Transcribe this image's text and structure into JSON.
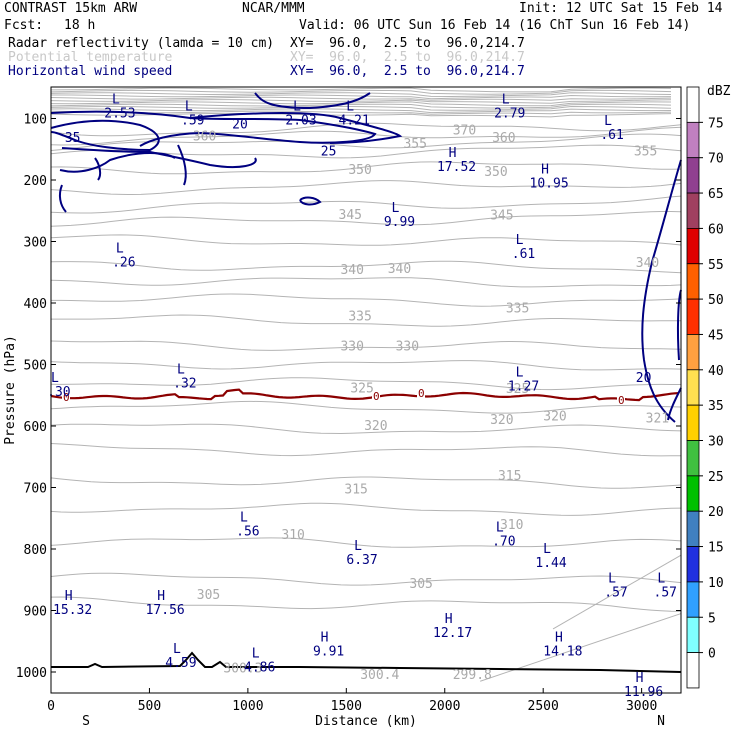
{
  "header": {
    "model": "CONTRAST 15km ARW",
    "org": "NCAR/MMM",
    "init": "Init: 12 UTC Sat 15 Feb 14",
    "fcst_label": "Fcst:",
    "fcst_value": "18 h",
    "valid": "Valid: 06 UTC Sun 16 Feb 14 (16 ChT Sun 16 Feb 14)"
  },
  "fields": [
    {
      "name": "Radar reflectivity (lamda = 10 cm)",
      "xy": "XY=  96.0,  2.5 to  96.0,214.7",
      "color": "#000000"
    },
    {
      "name": "Potential temperature",
      "xy": "XY=  96.0,  2.5 to  96.0,214.7",
      "color": "#c8c8c8"
    },
    {
      "name": "Horizontal wind speed",
      "xy": "XY=  96.0,  2.5 to  96.0,214.7",
      "color": "#000080"
    }
  ],
  "chart_data": {
    "type": "cross-section contour",
    "xlabel": "Distance (km)",
    "ylabel": "Pressure (hPa)",
    "xlim": [
      0,
      3200
    ],
    "ylim": [
      1040,
      55
    ],
    "x_ticks": [
      0,
      500,
      1000,
      1500,
      2000,
      2500,
      3000
    ],
    "x_tick_labels": [
      "0",
      "500",
      "1000",
      "1500",
      "2000",
      "2500",
      "3000"
    ],
    "y_ticks": [
      100,
      200,
      300,
      400,
      500,
      600,
      700,
      800,
      900,
      1000
    ],
    "y_tick_labels": [
      "100",
      "200",
      "300",
      "400",
      "500",
      "600",
      "700",
      "800",
      "900",
      "1000"
    ],
    "x_endpoints": {
      "left": "S",
      "right": "N"
    },
    "colorbar": {
      "unit": "dBZ",
      "levels": [
        "75",
        "70",
        "65",
        "60",
        "55",
        "50",
        "45",
        "40",
        "35",
        "30",
        "25",
        "20",
        "15",
        "10",
        "5",
        "0"
      ],
      "colors": [
        "#ffffff",
        "#c080c0",
        "#904090",
        "#a04060",
        "#e00000",
        "#ff6000",
        "#ff3000",
        "#ffa040",
        "#ffe050",
        "#ffd000",
        "#40c040",
        "#00c000",
        "#4080c0",
        "#2030e0",
        "#30a0ff",
        "#80ffff",
        "#ffffff"
      ]
    },
    "theta_labels": [
      {
        "text": "370",
        "x": 2100,
        "p": 118
      },
      {
        "text": "360",
        "x": 2300,
        "p": 130
      },
      {
        "text": "355",
        "x": 1850,
        "p": 140
      },
      {
        "text": "355",
        "x": 3020,
        "p": 152
      },
      {
        "text": "360",
        "x": 780,
        "p": 128
      },
      {
        "text": "350",
        "x": 1570,
        "p": 182
      },
      {
        "text": "350",
        "x": 2260,
        "p": 185
      },
      {
        "text": "345",
        "x": 1520,
        "p": 255
      },
      {
        "text": "345",
        "x": 2290,
        "p": 256
      },
      {
        "text": "340",
        "x": 1530,
        "p": 345
      },
      {
        "text": "340",
        "x": 1770,
        "p": 343
      },
      {
        "text": "340",
        "x": 3030,
        "p": 333
      },
      {
        "text": "335",
        "x": 1570,
        "p": 420
      },
      {
        "text": "335",
        "x": 2370,
        "p": 407
      },
      {
        "text": "330",
        "x": 1530,
        "p": 469
      },
      {
        "text": "330",
        "x": 1810,
        "p": 469
      },
      {
        "text": "325",
        "x": 1580,
        "p": 537
      },
      {
        "text": "325",
        "x": 2370,
        "p": 538
      },
      {
        "text": "320",
        "x": 1650,
        "p": 598
      },
      {
        "text": "320",
        "x": 2290,
        "p": 589
      },
      {
        "text": "320",
        "x": 2560,
        "p": 583
      },
      {
        "text": "321",
        "x": 3080,
        "p": 586
      },
      {
        "text": "315",
        "x": 1550,
        "p": 702
      },
      {
        "text": "315",
        "x": 2330,
        "p": 680
      },
      {
        "text": "310",
        "x": 1230,
        "p": 776
      },
      {
        "text": "310",
        "x": 2340,
        "p": 759
      },
      {
        "text": "305",
        "x": 800,
        "p": 873
      },
      {
        "text": "305",
        "x": 1880,
        "p": 855
      },
      {
        "text": "300.3",
        "x": 975,
        "p": 993
      },
      {
        "text": "300.4",
        "x": 1670,
        "p": 1003
      },
      {
        "text": "299.8",
        "x": 2140,
        "p": 1003
      }
    ],
    "wind_labels": [
      {
        "text": "35",
        "x": 110,
        "p": 130
      },
      {
        "text": "20",
        "x": 960,
        "p": 108
      },
      {
        "text": "25",
        "x": 1410,
        "p": 152
      },
      {
        "text": "20",
        "x": 3010,
        "p": 520
      }
    ],
    "extrema": [
      {
        "type": "L",
        "value": "2.53",
        "x": 350,
        "p": 85
      },
      {
        "type": "L",
        "value": ".59",
        "x": 720,
        "p": 97
      },
      {
        "type": "L",
        "value": "2.03",
        "x": 1270,
        "p": 97
      },
      {
        "type": "L",
        "value": "4.21",
        "x": 1540,
        "p": 97
      },
      {
        "type": "L",
        "value": "2.79",
        "x": 2330,
        "p": 85
      },
      {
        "type": "L",
        "value": ".61",
        "x": 2850,
        "p": 120
      },
      {
        "type": "H",
        "value": "17.52",
        "x": 2060,
        "p": 172
      },
      {
        "type": "H",
        "value": "10.95",
        "x": 2530,
        "p": 199
      },
      {
        "type": "L",
        "value": "9.99",
        "x": 1770,
        "p": 262
      },
      {
        "type": "L",
        "value": ".61",
        "x": 2400,
        "p": 314
      },
      {
        "type": "L",
        "value": ".26",
        "x": 370,
        "p": 328
      },
      {
        "type": "L",
        "value": ".32",
        "x": 680,
        "p": 524
      },
      {
        "type": "L",
        "value": "1.27",
        "x": 2400,
        "p": 529
      },
      {
        "type": "L",
        "value": ".30",
        "x": 40,
        "p": 538
      },
      {
        "type": "L",
        "value": ".56",
        "x": 1000,
        "p": 765
      },
      {
        "type": "L",
        "value": ".70",
        "x": 2300,
        "p": 781
      },
      {
        "type": "L",
        "value": "6.37",
        "x": 1580,
        "p": 811
      },
      {
        "type": "L",
        "value": "1.44",
        "x": 2540,
        "p": 816
      },
      {
        "type": "L",
        "value": ".57",
        "x": 2870,
        "p": 864
      },
      {
        "type": "L",
        "value": ".57",
        "x": 3120,
        "p": 864
      },
      {
        "type": "H",
        "value": "15.32",
        "x": 110,
        "p": 893
      },
      {
        "type": "H",
        "value": "17.56",
        "x": 580,
        "p": 893
      },
      {
        "type": "H",
        "value": "12.17",
        "x": 2040,
        "p": 930
      },
      {
        "type": "H",
        "value": "9.91",
        "x": 1410,
        "p": 960
      },
      {
        "type": "H",
        "value": "14.18",
        "x": 2600,
        "p": 960
      },
      {
        "type": "L",
        "value": "4.59",
        "x": 660,
        "p": 979
      },
      {
        "type": "L",
        "value": "4.86",
        "x": 1060,
        "p": 986
      },
      {
        "type": "H",
        "value": "11.96",
        "x": 3010,
        "p": 1026
      }
    ]
  }
}
